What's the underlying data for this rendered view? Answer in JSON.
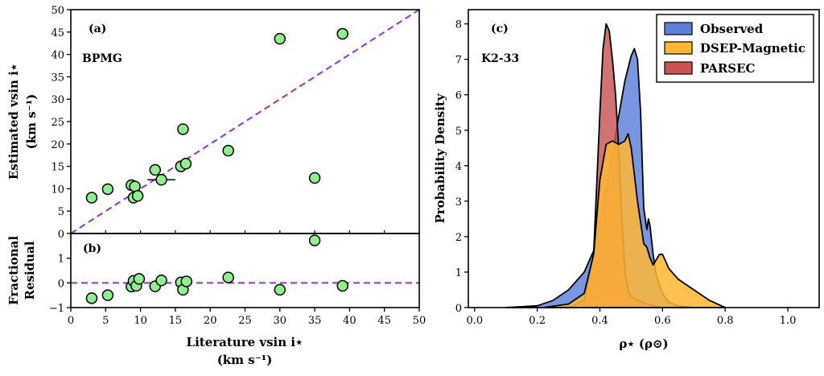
{
  "chart_data": [
    {
      "type": "scatter",
      "panel": "(a)",
      "annotation": "BPMG",
      "ylabel_lines": [
        "Estimated vsin i⋆",
        "(km s⁻¹)"
      ],
      "xlim": [
        0,
        50
      ],
      "ylim": [
        0,
        50
      ],
      "xticks": [
        0,
        5,
        10,
        15,
        20,
        25,
        30,
        35,
        40,
        45,
        50
      ],
      "yticks": [
        0,
        5,
        10,
        15,
        20,
        25,
        30,
        35,
        40,
        45,
        50
      ],
      "one_to_one_line": true,
      "point_color": "#90ee90",
      "line_color": "#9932cc",
      "points": [
        {
          "x": 3.0,
          "y": 8.0
        },
        {
          "x": 5.3,
          "y": 9.9
        },
        {
          "x": 8.7,
          "y": 10.8
        },
        {
          "x": 9.0,
          "y": 8.0
        },
        {
          "x": 9.2,
          "y": 10.5
        },
        {
          "x": 9.6,
          "y": 8.4
        },
        {
          "x": 12.1,
          "y": 14.2
        },
        {
          "x": 13.0,
          "y": 12.0,
          "xerr": 2.0
        },
        {
          "x": 15.8,
          "y": 15.0
        },
        {
          "x": 16.1,
          "y": 23.3
        },
        {
          "x": 16.5,
          "y": 15.6
        },
        {
          "x": 22.6,
          "y": 18.5
        },
        {
          "x": 30.0,
          "y": 43.5
        },
        {
          "x": 35.0,
          "y": 12.4
        },
        {
          "x": 39.0,
          "y": 44.6
        }
      ]
    },
    {
      "type": "scatter",
      "panel": "(b)",
      "ylabel_lines": [
        "Fractional",
        "Residual"
      ],
      "xlabel_lines": [
        "Literature vsin i⋆",
        "(km s⁻¹)"
      ],
      "xlim": [
        0,
        50
      ],
      "ylim": [
        -1,
        2
      ],
      "xticks": [
        0,
        5,
        10,
        15,
        20,
        25,
        30,
        35,
        40,
        45,
        50
      ],
      "yticks": [
        -1,
        0,
        1
      ],
      "zero_line": true,
      "points": [
        {
          "x": 3.0,
          "y": -0.62
        },
        {
          "x": 5.3,
          "y": -0.5
        },
        {
          "x": 8.7,
          "y": -0.15
        },
        {
          "x": 9.0,
          "y": 0.08
        },
        {
          "x": 9.4,
          "y": -0.12
        },
        {
          "x": 9.8,
          "y": 0.16
        },
        {
          "x": 12.1,
          "y": -0.14
        },
        {
          "x": 13.0,
          "y": 0.1
        },
        {
          "x": 15.8,
          "y": 0.02
        },
        {
          "x": 16.1,
          "y": -0.28
        },
        {
          "x": 16.6,
          "y": 0.06
        },
        {
          "x": 22.6,
          "y": 0.22
        },
        {
          "x": 30.0,
          "y": -0.28
        },
        {
          "x": 35.0,
          "y": 1.72
        },
        {
          "x": 39.0,
          "y": -0.12
        }
      ]
    },
    {
      "type": "area",
      "panel": "(c)",
      "annotation": "K2-33",
      "xlabel": "ρ⋆ (ρ⊙)",
      "ylabel": "Probability Density",
      "xlim": [
        -0.02,
        1.1
      ],
      "ylim": [
        0,
        8.4
      ],
      "xticks": [
        0.0,
        0.2,
        0.4,
        0.6,
        0.8,
        1.0
      ],
      "xticklabels": [
        "0.0",
        "0.2",
        "0.4",
        "0.6",
        "0.8",
        "1.0"
      ],
      "yticks": [
        0,
        1,
        2,
        3,
        4,
        5,
        6,
        7,
        8
      ],
      "legend_position": "top-right",
      "series": [
        {
          "name": "Observed",
          "color": "#5b7fdb",
          "x": [
            0.1,
            0.2,
            0.25,
            0.3,
            0.35,
            0.38,
            0.4,
            0.42,
            0.44,
            0.46,
            0.48,
            0.5,
            0.51,
            0.52,
            0.53,
            0.54,
            0.55,
            0.555,
            0.56,
            0.57,
            0.58,
            0.6,
            0.62,
            0.65,
            0.7
          ],
          "y": [
            0,
            0.05,
            0.2,
            0.5,
            1.0,
            1.6,
            2.4,
            3.3,
            4.3,
            5.4,
            6.4,
            7.1,
            7.3,
            7.0,
            5.5,
            2.8,
            2.2,
            2.5,
            2.3,
            1.5,
            0.9,
            0.4,
            0.15,
            0.05,
            0
          ]
        },
        {
          "name": "DSEP-Magnetic",
          "color": "#ffb733",
          "x": [
            0.22,
            0.3,
            0.35,
            0.38,
            0.4,
            0.42,
            0.44,
            0.46,
            0.48,
            0.49,
            0.5,
            0.52,
            0.54,
            0.55,
            0.56,
            0.57,
            0.59,
            0.6,
            0.62,
            0.65,
            0.7,
            0.75,
            0.8
          ],
          "y": [
            0,
            0.1,
            0.4,
            1.5,
            3.6,
            4.6,
            4.7,
            4.6,
            4.7,
            4.9,
            4.5,
            3.0,
            1.8,
            1.7,
            1.4,
            1.2,
            1.5,
            1.5,
            1.1,
            0.8,
            0.5,
            0.2,
            0
          ]
        },
        {
          "name": "PARSEC",
          "color": "#c85454",
          "x": [
            0.3,
            0.35,
            0.38,
            0.39,
            0.4,
            0.41,
            0.42,
            0.43,
            0.44,
            0.45,
            0.46,
            0.47,
            0.48,
            0.49,
            0.5,
            0.52,
            0.55,
            0.6
          ],
          "y": [
            0,
            0.2,
            1.5,
            3.5,
            5.5,
            7.3,
            8.0,
            7.8,
            7.0,
            6.0,
            4.5,
            2.5,
            1.0,
            0.5,
            0.3,
            0.2,
            0.1,
            0
          ]
        }
      ]
    }
  ]
}
